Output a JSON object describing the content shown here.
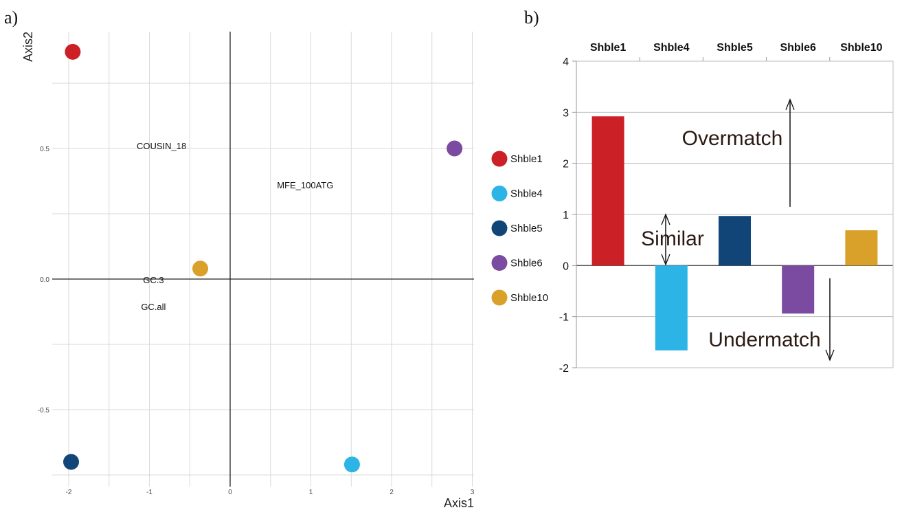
{
  "chart_data": [
    {
      "type": "scatter",
      "panel_label": "a)",
      "xlabel": "Axis1",
      "ylabel": "Axis2",
      "xlim": [
        -2.2,
        3.0
      ],
      "ylim": [
        -0.75,
        0.9
      ],
      "xticks": [
        {
          "value": -2,
          "label": "-2"
        },
        {
          "value": -1,
          "label": "-1"
        },
        {
          "value": 0,
          "label": "0"
        },
        {
          "value": 1,
          "label": "1"
        },
        {
          "value": 2,
          "label": "2"
        },
        {
          "value": 3,
          "label": "3"
        }
      ],
      "yticks": [
        {
          "value": 0.5,
          "label": "0.5"
        },
        {
          "value": 0.0,
          "label": "0.0"
        },
        {
          "value": -0.5,
          "label": "-0.5"
        }
      ],
      "grid": true,
      "legend_position": "right",
      "points": [
        {
          "name": "Shble1",
          "x": -1.95,
          "y": 0.87,
          "color": "#cc2027"
        },
        {
          "name": "Shble4",
          "x": 1.51,
          "y": -0.71,
          "color": "#2db4e6"
        },
        {
          "name": "Shble5",
          "x": -1.97,
          "y": -0.7,
          "color": "#114578"
        },
        {
          "name": "Shble6",
          "x": 2.78,
          "y": 0.5,
          "color": "#7a4ba0"
        },
        {
          "name": "Shble10",
          "x": -0.37,
          "y": 0.04,
          "color": "#d9a02a"
        }
      ],
      "variable_labels": [
        {
          "text": "COUSIN_18",
          "x": -0.85,
          "y": 0.51
        },
        {
          "text": "MFE_100ATG",
          "x": 0.93,
          "y": 0.36
        },
        {
          "text": "GC.3",
          "x": -0.95,
          "y": -0.002
        },
        {
          "text": "GC.all",
          "x": -0.95,
          "y": -0.105
        }
      ]
    },
    {
      "type": "bar",
      "panel_label": "b)",
      "categories": [
        "Shble1",
        "Shble4",
        "Shble5",
        "Shble6",
        "Shble10"
      ],
      "values": [
        2.92,
        -1.66,
        0.97,
        -0.94,
        0.69
      ],
      "colors": [
        "#cc2027",
        "#2db4e6",
        "#114578",
        "#7a4ba0",
        "#d9a02a"
      ],
      "ylim": [
        -2,
        4
      ],
      "yticks": [
        "-2",
        "-1",
        "0",
        "1",
        "2",
        "3",
        "4"
      ],
      "grid": true,
      "category_labels_position": "top",
      "annotations": [
        {
          "text": "Overmatch",
          "x": 2.5,
          "y": 2.5
        },
        {
          "text": "Similar",
          "x": 0.5,
          "y": 0.5
        },
        {
          "text": "Undermatch",
          "x": 2.5,
          "y": -1.25
        }
      ]
    }
  ]
}
